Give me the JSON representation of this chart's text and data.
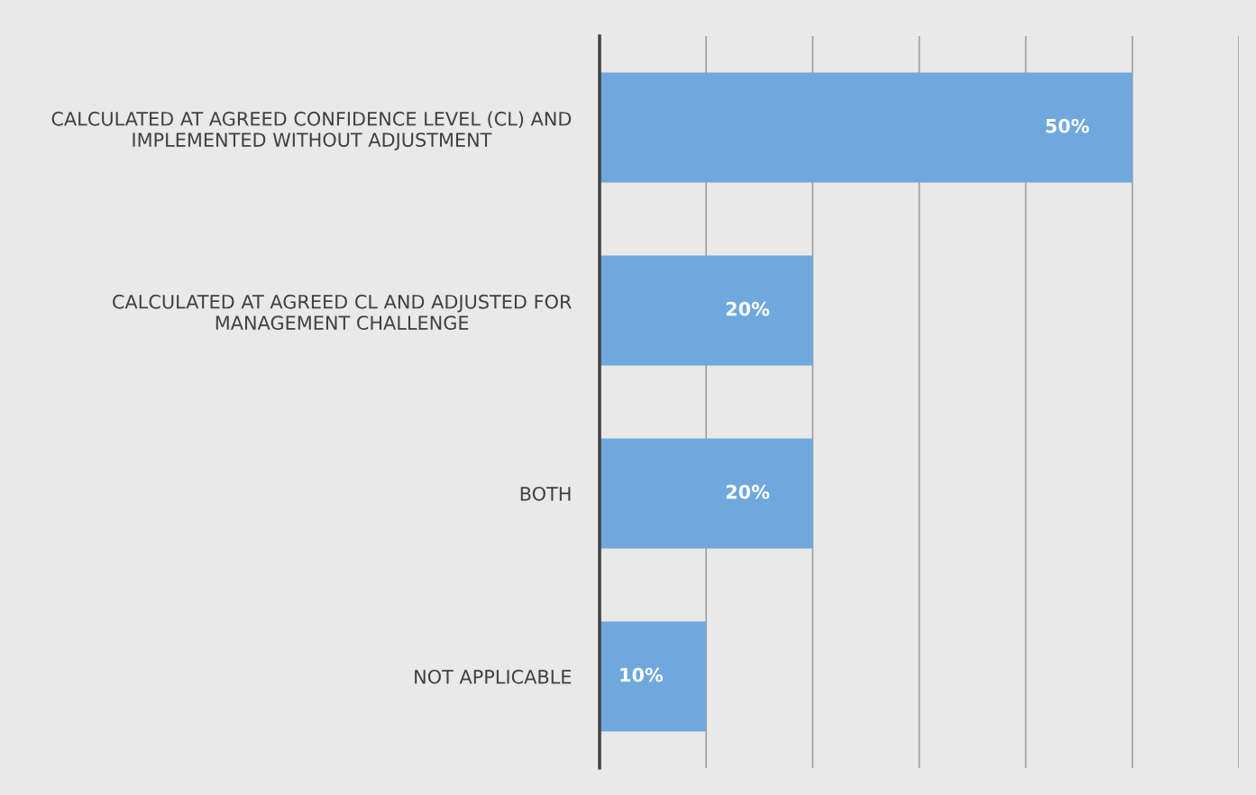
{
  "chart_data": {
    "type": "bar",
    "orientation": "horizontal",
    "categories": [
      "CALCULATED AT AGREED CONFIDENCE LEVEL (CL) AND\nIMPLEMENTED WITHOUT ADJUSTMENT",
      "CALCULATED AT AGREED CL AND ADJUSTED FOR\nMANAGEMENT CHALLENGE",
      "BOTH",
      "NOT APPLICABLE"
    ],
    "values": [
      50,
      20,
      20,
      10
    ],
    "value_labels": [
      "50%",
      "20%",
      "20%",
      "10%"
    ],
    "color": "#6fa8dc",
    "xlim": [
      0,
      60
    ],
    "xticks": [
      {
        "value": 0,
        "label": null
      },
      {
        "value": 10,
        "label": null
      },
      {
        "value": 20,
        "label": null
      },
      {
        "value": 30,
        "label": null
      },
      {
        "value": 40,
        "label": null
      },
      {
        "value": 50,
        "label": null
      },
      {
        "value": 60,
        "label": null
      }
    ],
    "grid": "x",
    "tick_labels": "y"
  }
}
